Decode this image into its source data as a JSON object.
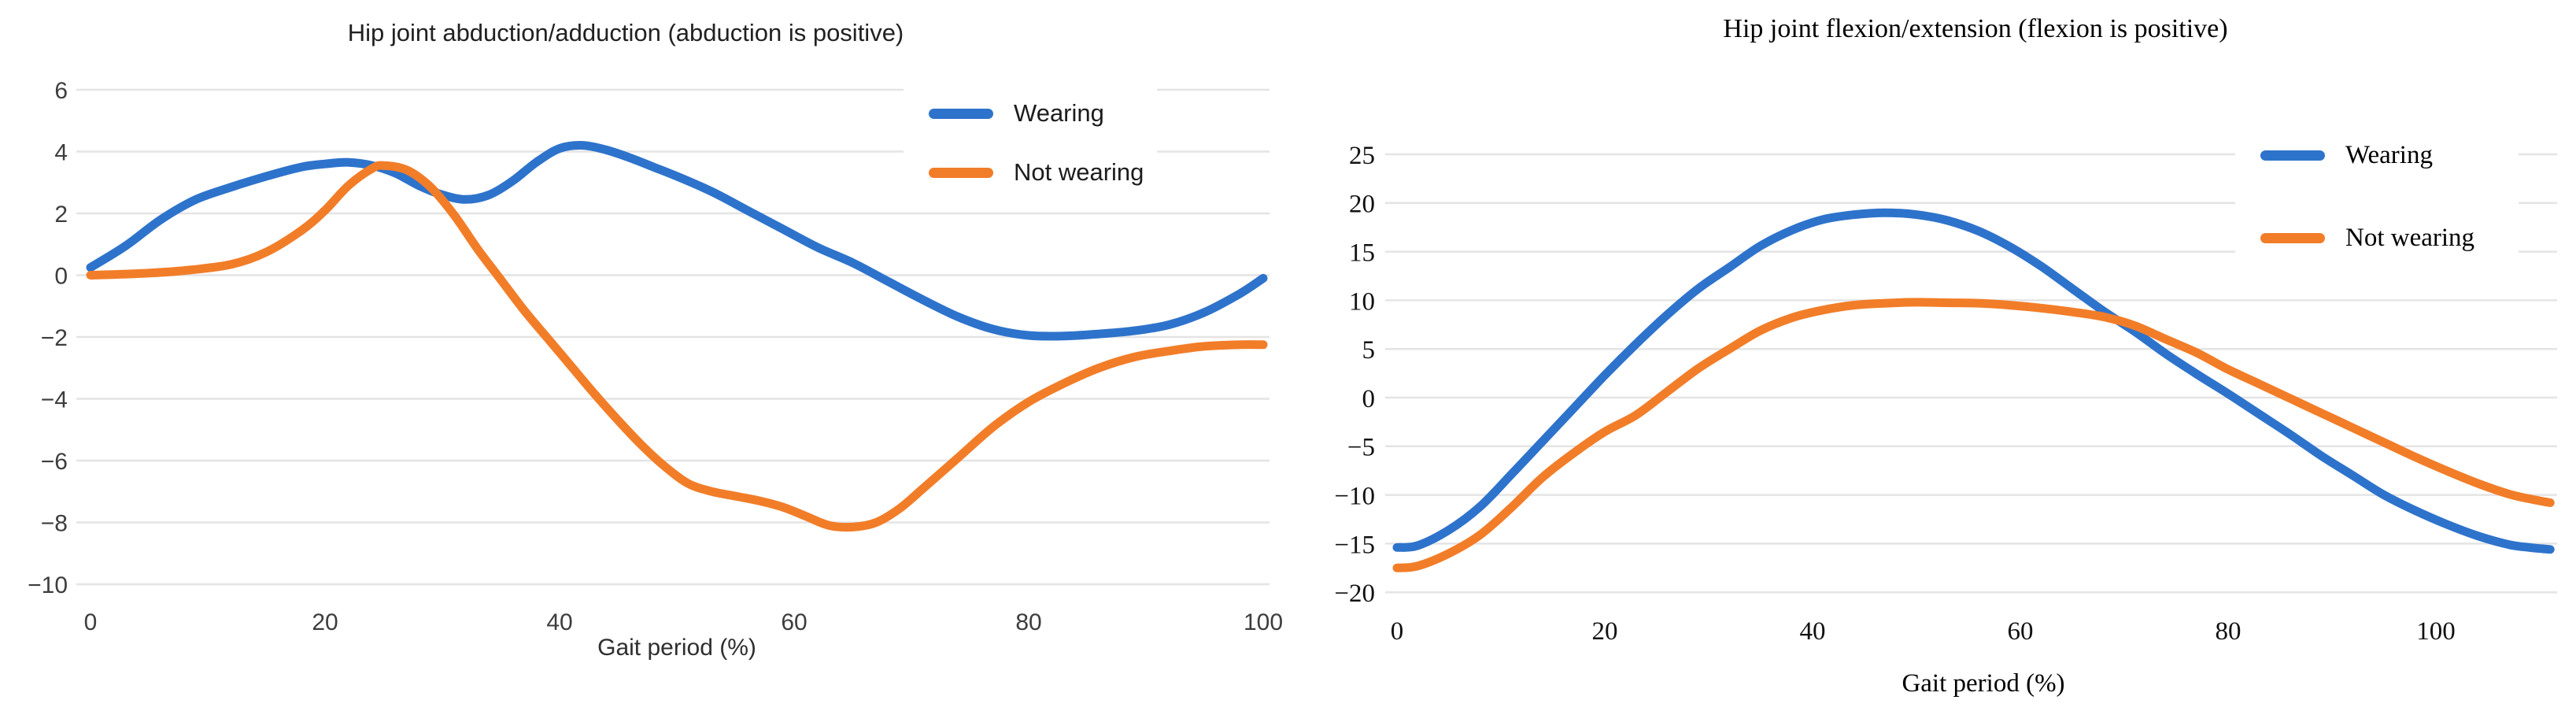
{
  "page": {
    "background": "#ffffff"
  },
  "colors": {
    "wearing": "#2e73cb",
    "not_wearing": "#f27d28",
    "gridline": "#e4e4e4"
  },
  "chart_data": [
    {
      "type": "line",
      "title": "Hip joint abduction/adduction (abduction is positive)",
      "xlabel": "Gait period (%)",
      "ylabel": "",
      "font_style": "sans-serif",
      "grid": "horizontal",
      "legend_position": "top-right-inside",
      "ylim": [
        -10,
        6
      ],
      "xlim": [
        0,
        100
      ],
      "ytick_values": [
        6,
        4,
        2,
        0,
        -2,
        -4,
        -6,
        -8,
        -10
      ],
      "ytick_labels": [
        "6",
        "4",
        "2",
        "0",
        "−2",
        "−4",
        "−6",
        "−8",
        "−10"
      ],
      "xtick_values": [
        0,
        20,
        40,
        60,
        80,
        100
      ],
      "xtick_labels": [
        "0",
        "20",
        "40",
        "60",
        "80",
        "100"
      ],
      "tick_color": "#3d3d3d",
      "series": [
        {
          "name": "Wearing",
          "color": "#2e73cb",
          "points": [
            [
              0,
              0.25
            ],
            [
              3,
              0.95
            ],
            [
              6,
              1.8
            ],
            [
              9,
              2.45
            ],
            [
              12,
              2.85
            ],
            [
              15,
              3.2
            ],
            [
              18,
              3.5
            ],
            [
              20,
              3.6
            ],
            [
              22,
              3.65
            ],
            [
              24,
              3.55
            ],
            [
              26,
              3.3
            ],
            [
              28,
              2.9
            ],
            [
              30,
              2.6
            ],
            [
              32,
              2.45
            ],
            [
              34,
              2.6
            ],
            [
              36,
              3.05
            ],
            [
              38,
              3.65
            ],
            [
              40,
              4.1
            ],
            [
              42,
              4.2
            ],
            [
              44,
              4.05
            ],
            [
              46,
              3.8
            ],
            [
              48,
              3.5
            ],
            [
              50,
              3.2
            ],
            [
              53,
              2.7
            ],
            [
              56,
              2.1
            ],
            [
              59,
              1.5
            ],
            [
              62,
              0.9
            ],
            [
              65,
              0.4
            ],
            [
              68,
              -0.2
            ],
            [
              71,
              -0.8
            ],
            [
              74,
              -1.35
            ],
            [
              77,
              -1.75
            ],
            [
              80,
              -1.95
            ],
            [
              83,
              -1.97
            ],
            [
              86,
              -1.9
            ],
            [
              89,
              -1.8
            ],
            [
              92,
              -1.6
            ],
            [
              95,
              -1.2
            ],
            [
              98,
              -0.6
            ],
            [
              100,
              -0.1
            ]
          ]
        },
        {
          "name": "Not wearing",
          "color": "#f27d28",
          "points": [
            [
              0,
              0.0
            ],
            [
              4,
              0.05
            ],
            [
              8,
              0.15
            ],
            [
              12,
              0.35
            ],
            [
              15,
              0.75
            ],
            [
              18,
              1.45
            ],
            [
              20,
              2.1
            ],
            [
              22,
              2.9
            ],
            [
              24,
              3.45
            ],
            [
              25,
              3.55
            ],
            [
              27,
              3.4
            ],
            [
              29,
              2.85
            ],
            [
              31,
              1.95
            ],
            [
              33,
              0.85
            ],
            [
              35,
              -0.15
            ],
            [
              37,
              -1.15
            ],
            [
              39,
              -2.05
            ],
            [
              41,
              -2.95
            ],
            [
              43,
              -3.85
            ],
            [
              45,
              -4.7
            ],
            [
              47,
              -5.5
            ],
            [
              49,
              -6.2
            ],
            [
              51,
              -6.75
            ],
            [
              53,
              -7.0
            ],
            [
              55,
              -7.15
            ],
            [
              57,
              -7.3
            ],
            [
              59,
              -7.5
            ],
            [
              61,
              -7.8
            ],
            [
              63,
              -8.1
            ],
            [
              65,
              -8.15
            ],
            [
              67,
              -8.0
            ],
            [
              69,
              -7.55
            ],
            [
              71,
              -6.9
            ],
            [
              74,
              -5.9
            ],
            [
              77,
              -4.9
            ],
            [
              80,
              -4.1
            ],
            [
              83,
              -3.5
            ],
            [
              86,
              -3.0
            ],
            [
              89,
              -2.65
            ],
            [
              92,
              -2.45
            ],
            [
              95,
              -2.3
            ],
            [
              98,
              -2.25
            ],
            [
              100,
              -2.25
            ]
          ]
        }
      ]
    },
    {
      "type": "line",
      "title": "Hip joint flexion/extension (flexion is positive)",
      "xlabel": "Gait period (%)",
      "ylabel": "",
      "font_style": "serif",
      "grid": "horizontal",
      "legend_position": "top-right-inside",
      "ylim": [
        -20,
        25
      ],
      "xlim": [
        0,
        111.5
      ],
      "ytick_values": [
        25,
        20,
        15,
        10,
        5,
        0,
        -5,
        -10,
        -15,
        -20
      ],
      "ytick_labels": [
        "25",
        "20",
        "15",
        "10",
        "5",
        "0",
        "−5",
        "−10",
        "−15",
        "−20"
      ],
      "xtick_values": [
        0,
        20,
        40,
        60,
        80,
        100
      ],
      "xtick_labels": [
        "0",
        "20",
        "40",
        "60",
        "80",
        "100"
      ],
      "tick_color": "#111111",
      "series": [
        {
          "name": "Wearing",
          "color": "#2e73cb",
          "points": [
            [
              0,
              -15.4
            ],
            [
              2,
              -15.2
            ],
            [
              5,
              -13.6
            ],
            [
              8,
              -11.2
            ],
            [
              11,
              -7.9
            ],
            [
              14,
              -4.5
            ],
            [
              17,
              -1.1
            ],
            [
              20,
              2.3
            ],
            [
              23,
              5.5
            ],
            [
              26,
              8.5
            ],
            [
              29,
              11.2
            ],
            [
              32,
              13.4
            ],
            [
              35,
              15.6
            ],
            [
              38,
              17.2
            ],
            [
              41,
              18.3
            ],
            [
              44,
              18.8
            ],
            [
              47,
              19.0
            ],
            [
              50,
              18.8
            ],
            [
              53,
              18.2
            ],
            [
              56,
              17.1
            ],
            [
              59,
              15.5
            ],
            [
              62,
              13.5
            ],
            [
              65,
              11.2
            ],
            [
              68,
              8.9
            ],
            [
              71,
              6.8
            ],
            [
              74,
              4.5
            ],
            [
              77,
              2.4
            ],
            [
              80,
              0.4
            ],
            [
              83,
              -1.7
            ],
            [
              86,
              -3.8
            ],
            [
              89,
              -6.0
            ],
            [
              92,
              -8.0
            ],
            [
              95,
              -10.0
            ],
            [
              98,
              -11.6
            ],
            [
              101,
              -13.0
            ],
            [
              104,
              -14.2
            ],
            [
              107,
              -15.1
            ],
            [
              109,
              -15.4
            ],
            [
              111,
              -15.6
            ]
          ]
        },
        {
          "name": "Not wearing",
          "color": "#f27d28",
          "points": [
            [
              0,
              -17.5
            ],
            [
              2,
              -17.3
            ],
            [
              5,
              -16.0
            ],
            [
              8,
              -14.1
            ],
            [
              11,
              -11.3
            ],
            [
              14,
              -8.2
            ],
            [
              17,
              -5.7
            ],
            [
              20,
              -3.5
            ],
            [
              23,
              -1.8
            ],
            [
              26,
              0.6
            ],
            [
              29,
              3.0
            ],
            [
              32,
              5.0
            ],
            [
              35,
              6.9
            ],
            [
              38,
              8.2
            ],
            [
              41,
              9.0
            ],
            [
              44,
              9.5
            ],
            [
              47,
              9.7
            ],
            [
              50,
              9.8
            ],
            [
              53,
              9.75
            ],
            [
              56,
              9.7
            ],
            [
              59,
              9.5
            ],
            [
              62,
              9.2
            ],
            [
              65,
              8.8
            ],
            [
              68,
              8.3
            ],
            [
              71,
              7.4
            ],
            [
              74,
              6.0
            ],
            [
              77,
              4.6
            ],
            [
              80,
              2.9
            ],
            [
              83,
              1.4
            ],
            [
              86,
              -0.1
            ],
            [
              89,
              -1.6
            ],
            [
              92,
              -3.1
            ],
            [
              95,
              -4.6
            ],
            [
              98,
              -6.1
            ],
            [
              101,
              -7.5
            ],
            [
              104,
              -8.8
            ],
            [
              107,
              -9.9
            ],
            [
              109,
              -10.4
            ],
            [
              111,
              -10.8
            ]
          ]
        }
      ]
    }
  ]
}
